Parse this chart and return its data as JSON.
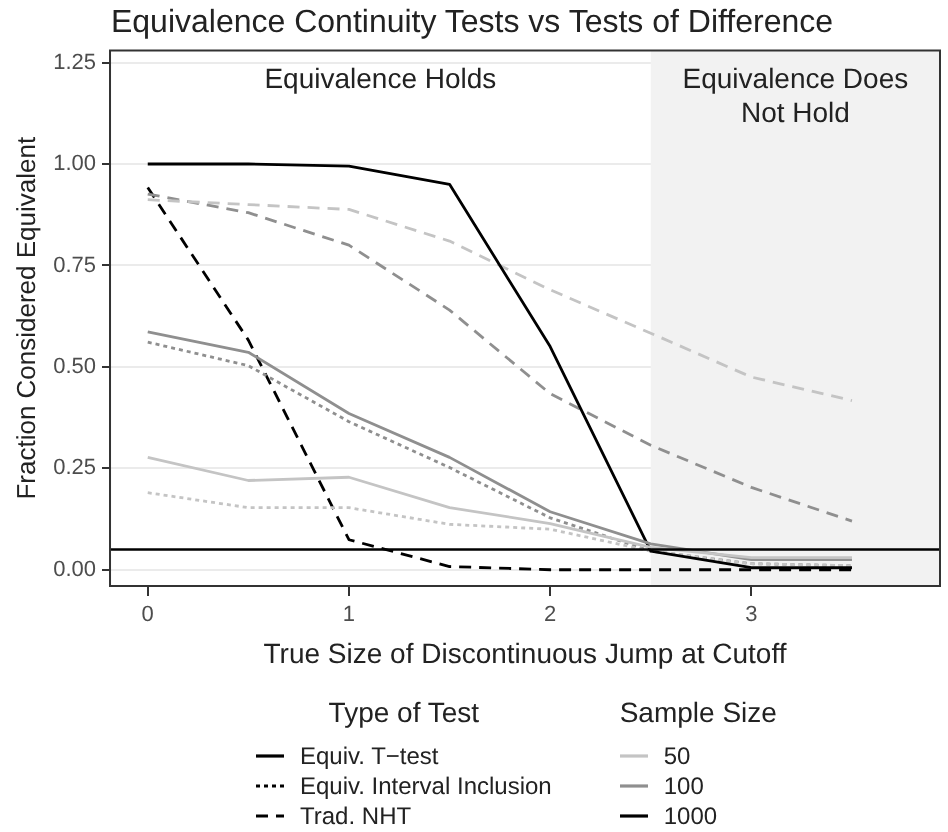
{
  "chart_data": {
    "type": "line",
    "title": "Equivalence Continuity Tests vs Tests of Difference",
    "xlabel": "True Size of Discontinuous Jump at Cutoff",
    "ylabel": "Fraction Considered Equivalent",
    "x": [
      0,
      0.5,
      1,
      1.5,
      2,
      2.5,
      3,
      3.5
    ],
    "series": [
      {
        "color": "#c4c4c4",
        "line_style": "solid",
        "values": [
          0.277,
          0.22,
          0.228,
          0.153,
          0.114,
          0.055,
          0.03,
          0.03
        ]
      },
      {
        "color": "#8f8f8f",
        "line_style": "solid",
        "values": [
          0.586,
          0.536,
          0.385,
          0.277,
          0.143,
          0.064,
          0.025,
          0.025
        ]
      },
      {
        "color": "#000000",
        "line_style": "solid",
        "values": [
          1.0,
          1.0,
          0.995,
          0.95,
          0.55,
          0.046,
          0.005,
          0.005
        ]
      },
      {
        "color": "#c4c4c4",
        "line_style": "dotted",
        "values": [
          0.19,
          0.153,
          0.153,
          0.112,
          0.1,
          0.046,
          0.015,
          0.01
        ]
      },
      {
        "color": "#8f8f8f",
        "line_style": "dotted",
        "values": [
          0.561,
          0.503,
          0.365,
          0.252,
          0.128,
          0.046,
          0.015,
          0.01
        ]
      },
      {
        "color": "#c4c4c4",
        "line_style": "dashed",
        "values": [
          0.912,
          0.9,
          0.888,
          0.81,
          0.69,
          0.583,
          0.475,
          0.417
        ]
      },
      {
        "color": "#8f8f8f",
        "line_style": "dashed",
        "values": [
          0.926,
          0.88,
          0.8,
          0.64,
          0.434,
          0.307,
          0.203,
          0.12
        ]
      },
      {
        "color": "#000000",
        "line_style": "dashed",
        "values": [
          0.942,
          0.566,
          0.074,
          0.008,
          0.0,
          0.0,
          0.0,
          0.0
        ]
      }
    ],
    "xlim": [
      -0.1875,
      3.9375
    ],
    "xticks": [
      0,
      1,
      2,
      3
    ],
    "ylim": [
      -0.04,
      1.28
    ],
    "yticks": [
      {
        "value": 0,
        "label": "0.00"
      },
      {
        "value": 0.25,
        "label": "0.25"
      },
      {
        "value": 0.5,
        "label": "0.50"
      },
      {
        "value": 0.75,
        "label": "0.75"
      },
      {
        "value": 1,
        "label": "1.00"
      },
      {
        "value": 1.25,
        "label": "1.25"
      }
    ],
    "grid": "y",
    "ref_lines": [
      {
        "axis": "y",
        "value": 0.05,
        "color": "#000000"
      }
    ],
    "bands": [
      {
        "axis": "x",
        "from": 2.5,
        "to": 3.9375,
        "label": "Equivalence Does Not Hold",
        "color": "#f2f2f2"
      }
    ],
    "annotations": [
      "Equivalence Holds",
      "Type of Test",
      "Equiv. T−test",
      "Equiv. Interval Inclusion",
      "Trad. NHT",
      "Sample Size",
      "50",
      "100",
      "1000"
    ]
  }
}
